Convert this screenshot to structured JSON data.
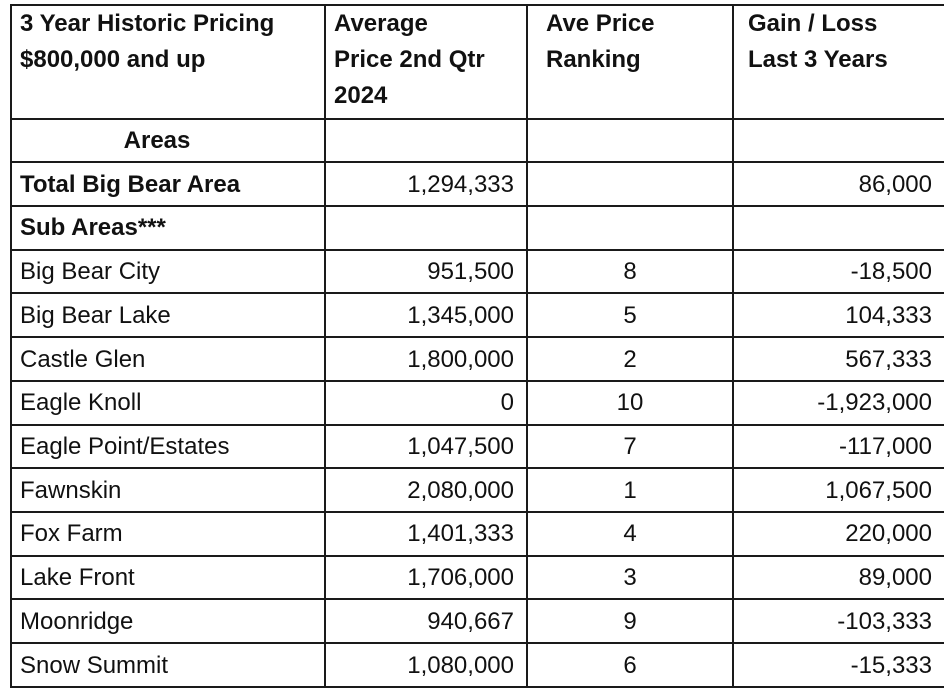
{
  "table": {
    "headers": {
      "col1": [
        "3 Year Historic Pricing",
        "$800,000 and up"
      ],
      "col2": [
        "Average",
        "Price 2nd Qtr",
        "2024"
      ],
      "col3": [
        "Ave Price",
        "Ranking"
      ],
      "col4": [
        "Gain / Loss",
        "Last 3 Years"
      ]
    },
    "section_areas": "Areas",
    "total": {
      "label": "Total Big Bear Area",
      "average_price": "1,294,333",
      "ranking": "",
      "gain_loss": "86,000"
    },
    "section_sub_areas": "Sub Areas***",
    "rows": [
      {
        "area": "Big Bear City",
        "average_price": "951,500",
        "ranking": "8",
        "gain_loss": "-18,500"
      },
      {
        "area": "Big Bear Lake",
        "average_price": "1,345,000",
        "ranking": "5",
        "gain_loss": "104,333"
      },
      {
        "area": "Castle Glen",
        "average_price": "1,800,000",
        "ranking": "2",
        "gain_loss": "567,333"
      },
      {
        "area": "Eagle Knoll",
        "average_price": "0",
        "ranking": "10",
        "gain_loss": "-1,923,000"
      },
      {
        "area": "Eagle Point/Estates",
        "average_price": "1,047,500",
        "ranking": "7",
        "gain_loss": "-117,000"
      },
      {
        "area": "Fawnskin",
        "average_price": "2,080,000",
        "ranking": "1",
        "gain_loss": "1,067,500"
      },
      {
        "area": "Fox Farm",
        "average_price": "1,401,333",
        "ranking": "4",
        "gain_loss": "220,000"
      },
      {
        "area": "Lake Front",
        "average_price": "1,706,000",
        "ranking": "3",
        "gain_loss": "89,000"
      },
      {
        "area": "Moonridge",
        "average_price": "940,667",
        "ranking": "9",
        "gain_loss": "-103,333"
      },
      {
        "area": "Snow Summit",
        "average_price": "1,080,000",
        "ranking": "6",
        "gain_loss": "-15,333"
      }
    ]
  }
}
